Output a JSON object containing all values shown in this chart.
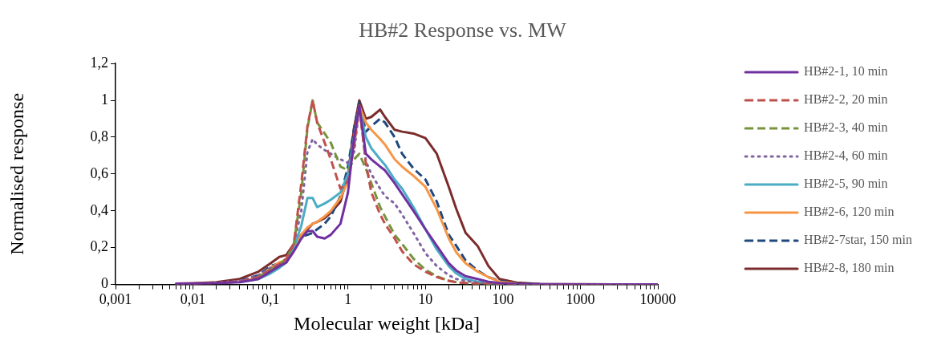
{
  "chart_data": {
    "type": "line",
    "title": "HB#2 Response vs. MW",
    "xlabel": "Molecular weight [kDa]",
    "ylabel": "Normalised response",
    "x": [
      0.006,
      0.01,
      0.02,
      0.04,
      0.07,
      0.1,
      0.13,
      0.16,
      0.2,
      0.25,
      0.3,
      0.35,
      0.4,
      0.5,
      0.6,
      0.8,
      1,
      1.2,
      1.4,
      1.7,
      2,
      2.6,
      3,
      4,
      5,
      7,
      10,
      14,
      20,
      25,
      33,
      47,
      65,
      90,
      150,
      300,
      1000,
      10000
    ],
    "series": [
      {
        "name": "HB#2-1, 10 min",
        "color": "#7030a0",
        "line_style": "solid",
        "values": [
          0.005,
          0.005,
          0.007,
          0.012,
          0.03,
          0.07,
          0.1,
          0.12,
          0.18,
          0.25,
          0.29,
          0.29,
          0.26,
          0.25,
          0.27,
          0.33,
          0.5,
          0.8,
          0.97,
          0.71,
          0.68,
          0.64,
          0.62,
          0.55,
          0.49,
          0.4,
          0.3,
          0.21,
          0.115,
          0.076,
          0.045,
          0.03,
          0.015,
          0.008,
          0.003,
          0.001,
          0,
          0
        ]
      },
      {
        "name": "HB#2-2, 20 min",
        "color": "#c0504d",
        "line_style": "dashed",
        "values": [
          null,
          0.005,
          0.008,
          0.015,
          0.04,
          0.08,
          0.11,
          0.14,
          0.22,
          0.55,
          0.86,
          1.0,
          0.88,
          0.77,
          0.68,
          0.52,
          0.56,
          0.75,
          0.97,
          0.66,
          0.5,
          0.38,
          0.33,
          0.25,
          0.18,
          0.11,
          0.07,
          0.04,
          0.02,
          0.012,
          0.008,
          0.004,
          0.002,
          0.001,
          0,
          0,
          0,
          0
        ]
      },
      {
        "name": "HB#2-3, 40 min",
        "color": "#77933c",
        "line_style": "dashed",
        "values": [
          null,
          null,
          null,
          null,
          0.04,
          0.08,
          0.11,
          0.14,
          0.22,
          0.5,
          0.85,
          1.0,
          0.88,
          0.82,
          0.77,
          0.64,
          0.62,
          0.68,
          0.71,
          0.63,
          0.55,
          0.42,
          0.37,
          0.27,
          0.22,
          0.14,
          0.08,
          0.045,
          0.02,
          0.012,
          0.008,
          0.004,
          0.002,
          0.001,
          0,
          0,
          null,
          null
        ]
      },
      {
        "name": "HB#2-4, 60 min",
        "color": "#8064a2",
        "line_style": "dotted",
        "values": [
          0.005,
          0.005,
          0.01,
          0.02,
          0.05,
          0.09,
          0.11,
          0.13,
          0.22,
          0.4,
          0.72,
          0.79,
          0.76,
          0.73,
          0.71,
          0.68,
          0.66,
          0.72,
          0.96,
          0.67,
          0.6,
          0.52,
          0.48,
          0.44,
          0.38,
          0.28,
          0.17,
          0.1,
          0.05,
          0.03,
          0.02,
          0.01,
          0.005,
          0.002,
          0.001,
          0,
          0,
          0
        ]
      },
      {
        "name": "HB#2-5, 90 min",
        "color": "#4bacc6",
        "line_style": "solid",
        "values": [
          null,
          null,
          null,
          0.012,
          0.03,
          0.06,
          0.09,
          0.12,
          0.2,
          0.32,
          0.47,
          0.47,
          0.42,
          0.44,
          0.46,
          0.5,
          0.6,
          0.8,
          0.96,
          0.8,
          0.74,
          0.68,
          0.65,
          0.57,
          0.52,
          0.42,
          0.3,
          0.19,
          0.1,
          0.06,
          0.03,
          0.015,
          0.008,
          0.004,
          null,
          null,
          null,
          null
        ]
      },
      {
        "name": "HB#2-6, 120 min",
        "color": "#f79646",
        "line_style": "solid",
        "values": [
          null,
          null,
          null,
          0.015,
          0.04,
          0.09,
          0.12,
          0.13,
          0.2,
          0.27,
          0.31,
          0.33,
          0.34,
          0.37,
          0.4,
          0.47,
          0.56,
          0.8,
          0.97,
          0.88,
          0.84,
          0.79,
          0.76,
          0.68,
          0.64,
          0.59,
          0.53,
          0.41,
          0.25,
          0.175,
          0.115,
          0.07,
          0.04,
          0.015,
          0.005,
          null,
          null,
          null
        ]
      },
      {
        "name": "HB#2-7star, 150 min",
        "color": "#1f497d",
        "line_style": "dashed",
        "values": [
          null,
          null,
          null,
          0.02,
          0.05,
          0.1,
          0.115,
          0.12,
          0.2,
          0.26,
          0.27,
          0.28,
          0.3,
          0.33,
          0.37,
          0.48,
          0.64,
          0.85,
          0.99,
          0.83,
          0.86,
          0.9,
          0.88,
          0.8,
          0.71,
          0.63,
          0.57,
          0.45,
          0.27,
          0.21,
          0.13,
          0.076,
          0.04,
          0.02,
          0.005,
          0.002,
          null,
          null
        ]
      },
      {
        "name": "HB#2-8, 180 min",
        "color": "#7b2c2c",
        "line_style": "solid",
        "values": [
          0.005,
          0.007,
          0.012,
          0.03,
          0.07,
          0.115,
          0.15,
          0.16,
          0.22,
          0.27,
          0.3,
          0.33,
          0.34,
          0.36,
          0.39,
          0.45,
          0.6,
          0.85,
          1.0,
          0.9,
          0.91,
          0.95,
          0.91,
          0.84,
          0.83,
          0.82,
          0.795,
          0.71,
          0.53,
          0.41,
          0.28,
          0.21,
          0.1,
          0.03,
          0.01,
          0.003,
          0.001,
          0
        ]
      }
    ],
    "log": "x",
    "xlim": [
      0.001,
      10000
    ],
    "xticks": [
      {
        "value": 0.001,
        "label": "0,001"
      },
      {
        "value": 0.002,
        "label": null
      },
      {
        "value": 0.003,
        "label": null
      },
      {
        "value": 0.004,
        "label": null
      },
      {
        "value": 0.005,
        "label": null
      },
      {
        "value": 0.006,
        "label": null
      },
      {
        "value": 0.007,
        "label": null
      },
      {
        "value": 0.008,
        "label": null
      },
      {
        "value": 0.009,
        "label": null
      },
      {
        "value": 0.01,
        "label": "0,01"
      },
      {
        "value": 0.02,
        "label": null
      },
      {
        "value": 0.03,
        "label": null
      },
      {
        "value": 0.04,
        "label": null
      },
      {
        "value": 0.05,
        "label": null
      },
      {
        "value": 0.06,
        "label": null
      },
      {
        "value": 0.07,
        "label": null
      },
      {
        "value": 0.08,
        "label": null
      },
      {
        "value": 0.09,
        "label": null
      },
      {
        "value": 0.1,
        "label": "0,1"
      },
      {
        "value": 0.2,
        "label": null
      },
      {
        "value": 0.3,
        "label": null
      },
      {
        "value": 0.4,
        "label": null
      },
      {
        "value": 0.5,
        "label": null
      },
      {
        "value": 0.6,
        "label": null
      },
      {
        "value": 0.7,
        "label": null
      },
      {
        "value": 0.8,
        "label": null
      },
      {
        "value": 0.9,
        "label": null
      },
      1,
      {
        "value": 2,
        "label": null
      },
      {
        "value": 3,
        "label": null
      },
      {
        "value": 4,
        "label": null
      },
      {
        "value": 5,
        "label": null
      },
      {
        "value": 6,
        "label": null
      },
      {
        "value": 7,
        "label": null
      },
      {
        "value": 8,
        "label": null
      },
      {
        "value": 9,
        "label": null
      },
      10,
      {
        "value": 20,
        "label": null
      },
      {
        "value": 30,
        "label": null
      },
      {
        "value": 40,
        "label": null
      },
      {
        "value": 50,
        "label": null
      },
      {
        "value": 60,
        "label": null
      },
      {
        "value": 70,
        "label": null
      },
      {
        "value": 80,
        "label": null
      },
      {
        "value": 90,
        "label": null
      },
      100,
      {
        "value": 200,
        "label": null
      },
      {
        "value": 300,
        "label": null
      },
      {
        "value": 400,
        "label": null
      },
      {
        "value": 500,
        "label": null
      },
      {
        "value": 600,
        "label": null
      },
      {
        "value": 700,
        "label": null
      },
      {
        "value": 800,
        "label": null
      },
      {
        "value": 900,
        "label": null
      },
      1000,
      {
        "value": 2000,
        "label": null
      },
      {
        "value": 3000,
        "label": null
      },
      {
        "value": 4000,
        "label": null
      },
      {
        "value": 5000,
        "label": null
      },
      {
        "value": 6000,
        "label": null
      },
      {
        "value": 7000,
        "label": null
      },
      {
        "value": 8000,
        "label": null
      },
      {
        "value": 9000,
        "label": null
      },
      10000
    ],
    "ylim": [
      0,
      1.2
    ],
    "yticks": [
      0,
      {
        "value": 0.2,
        "label": "0,2"
      },
      {
        "value": 0.4,
        "label": "0,4"
      },
      {
        "value": 0.6,
        "label": "0,6"
      },
      {
        "value": 0.8,
        "label": "0,8"
      },
      1,
      {
        "value": 1.2,
        "label": "1,2"
      }
    ],
    "grid": false,
    "legend": "right",
    "marker": "none"
  }
}
